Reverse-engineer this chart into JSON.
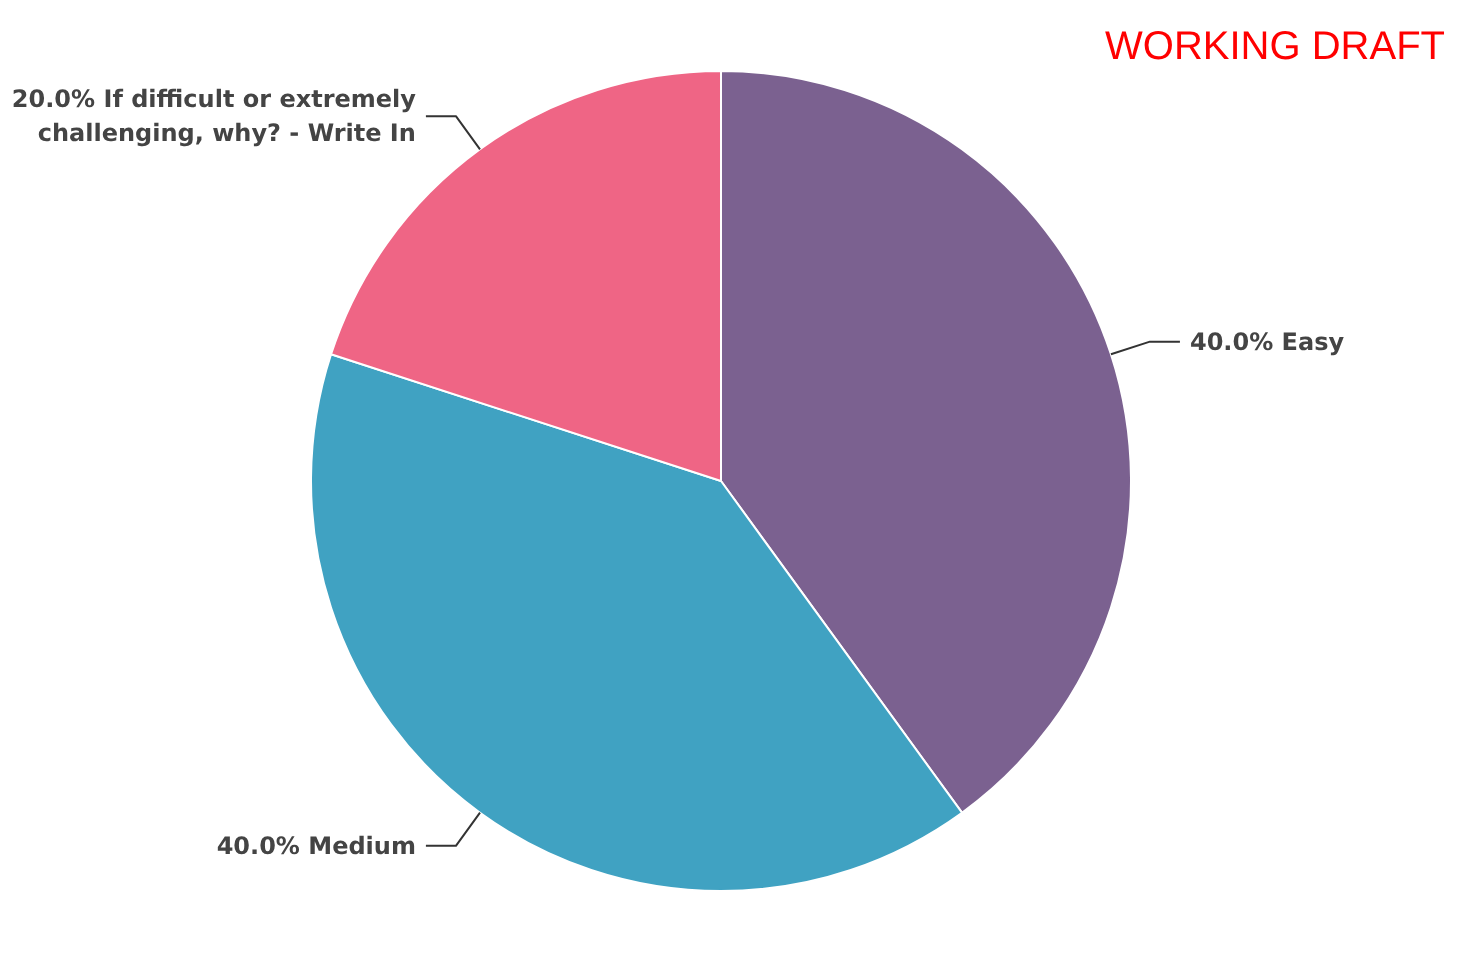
{
  "chart_data": {
    "type": "pie",
    "categories": [
      "Easy",
      "Medium",
      "If difficult or extremely challenging, why? - Write In"
    ],
    "values": [
      40,
      40,
      20
    ],
    "colors": [
      "#7b6190",
      "#40a2c2",
      "#ef6585"
    ],
    "value_labels": [
      "40.0%",
      "40.0%",
      "20.0%"
    ],
    "annotations": [
      "WORKING DRAFT"
    ]
  }
}
